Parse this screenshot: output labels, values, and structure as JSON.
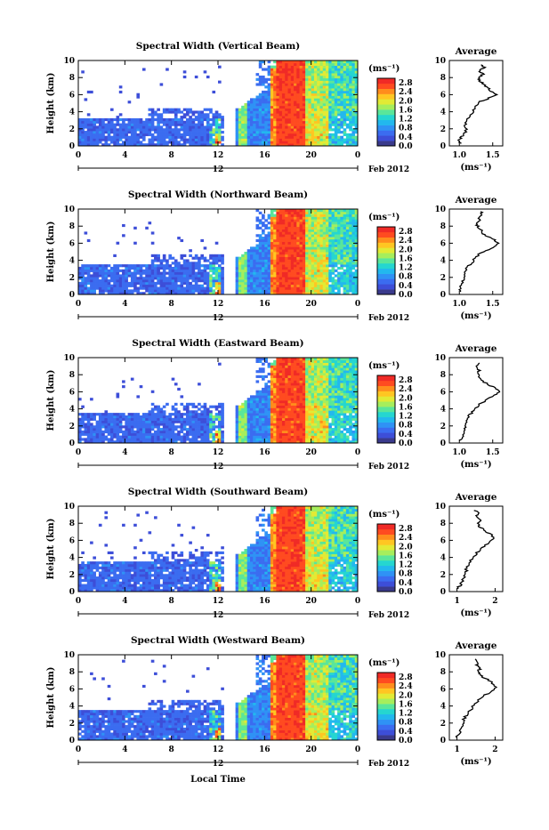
{
  "chart_data": {
    "type": "heatmap",
    "date_label": "Feb 2012",
    "xlabel": "Local Time",
    "ylabel": "Height (km)",
    "x_ticks": [
      "0",
      "4",
      "8",
      "12",
      "16",
      "20",
      "0"
    ],
    "secondary_tick": "12",
    "y_ticks": [
      "0",
      "2",
      "4",
      "6",
      "8",
      "10"
    ],
    "xlim": [
      0,
      24
    ],
    "ylim": [
      0,
      10
    ],
    "colorbar": {
      "unit": "(ms⁻¹)",
      "ticks": [
        "0.0",
        "0.4",
        "0.8",
        "1.2",
        "1.6",
        "2.0",
        "2.4",
        "2.8"
      ],
      "range": [
        0,
        3.0
      ],
      "colors": [
        "#3a3a8c",
        "#3d4ed8",
        "#3b6cf0",
        "#2f92f5",
        "#22b8ee",
        "#25d6d0",
        "#5ae69a",
        "#a6ee5c",
        "#e2ea35",
        "#ffc622",
        "#ff8d1c",
        "#ff4b20",
        "#f02a26"
      ]
    },
    "average_title": "Average",
    "average_xlabel": "(ms⁻¹)",
    "panels": [
      {
        "title": "Spectral Width (Vertical Beam)",
        "avg_ticks": [
          "1.0",
          "1.5"
        ],
        "avg_xlim": [
          0.85,
          1.65
        ],
        "avg_profile": [
          [
            1.02,
            0.3
          ],
          [
            1.0,
            0.8
          ],
          [
            1.05,
            1.2
          ],
          [
            1.1,
            1.8
          ],
          [
            1.08,
            2.4
          ],
          [
            1.12,
            3.0
          ],
          [
            1.18,
            3.6
          ],
          [
            1.2,
            4.2
          ],
          [
            1.25,
            4.8
          ],
          [
            1.32,
            5.2
          ],
          [
            1.45,
            5.6
          ],
          [
            1.55,
            6.0
          ],
          [
            1.48,
            6.4
          ],
          [
            1.42,
            6.8
          ],
          [
            1.38,
            7.2
          ],
          [
            1.3,
            7.6
          ],
          [
            1.28,
            8.0
          ],
          [
            1.35,
            8.4
          ],
          [
            1.3,
            8.8
          ],
          [
            1.38,
            9.2
          ],
          [
            1.32,
            9.6
          ]
        ]
      },
      {
        "title": "Spectral Width (Northward Beam)",
        "avg_ticks": [
          "1.0",
          "1.5"
        ],
        "avg_xlim": [
          0.85,
          1.65
        ],
        "avg_profile": [
          [
            1.0,
            0.3
          ],
          [
            1.02,
            0.8
          ],
          [
            1.05,
            1.4
          ],
          [
            1.08,
            2.0
          ],
          [
            1.1,
            2.6
          ],
          [
            1.12,
            3.2
          ],
          [
            1.2,
            3.8
          ],
          [
            1.25,
            4.4
          ],
          [
            1.35,
            5.0
          ],
          [
            1.5,
            5.5
          ],
          [
            1.6,
            6.0
          ],
          [
            1.52,
            6.4
          ],
          [
            1.42,
            6.8
          ],
          [
            1.35,
            7.2
          ],
          [
            1.3,
            7.8
          ],
          [
            1.25,
            8.2
          ],
          [
            1.3,
            8.6
          ],
          [
            1.28,
            9.0
          ],
          [
            1.35,
            9.4
          ],
          [
            1.3,
            9.8
          ]
        ]
      },
      {
        "title": "Spectral Width (Eastward Beam)",
        "avg_ticks": [
          "1.0",
          "1.5"
        ],
        "avg_xlim": [
          0.85,
          1.65
        ],
        "avg_profile": [
          [
            1.0,
            0.3
          ],
          [
            1.05,
            0.8
          ],
          [
            1.08,
            1.4
          ],
          [
            1.1,
            2.0
          ],
          [
            1.12,
            2.6
          ],
          [
            1.15,
            3.2
          ],
          [
            1.2,
            3.8
          ],
          [
            1.28,
            4.4
          ],
          [
            1.4,
            5.0
          ],
          [
            1.52,
            5.6
          ],
          [
            1.62,
            6.1
          ],
          [
            1.5,
            6.6
          ],
          [
            1.4,
            7.0
          ],
          [
            1.32,
            7.5
          ],
          [
            1.28,
            8.0
          ],
          [
            1.3,
            8.5
          ],
          [
            1.25,
            9.0
          ],
          [
            1.3,
            9.5
          ]
        ]
      },
      {
        "title": "Spectral Width (Southward Beam)",
        "avg_ticks": [
          "1",
          "2"
        ],
        "avg_xlim": [
          0.8,
          2.2
        ],
        "avg_profile": [
          [
            1.0,
            0.3
          ],
          [
            1.1,
            0.8
          ],
          [
            1.15,
            1.4
          ],
          [
            1.2,
            2.0
          ],
          [
            1.25,
            2.6
          ],
          [
            1.3,
            3.2
          ],
          [
            1.4,
            3.8
          ],
          [
            1.5,
            4.4
          ],
          [
            1.6,
            5.0
          ],
          [
            1.8,
            5.6
          ],
          [
            2.0,
            6.2
          ],
          [
            1.85,
            6.8
          ],
          [
            1.7,
            7.2
          ],
          [
            1.6,
            7.6
          ],
          [
            1.55,
            8.0
          ],
          [
            1.6,
            8.4
          ],
          [
            1.5,
            8.8
          ],
          [
            1.55,
            9.2
          ],
          [
            1.45,
            9.6
          ]
        ]
      },
      {
        "title": "Spectral Width (Westward Beam)",
        "avg_ticks": [
          "1",
          "2"
        ],
        "avg_xlim": [
          0.8,
          2.2
        ],
        "avg_profile": [
          [
            1.0,
            0.3
          ],
          [
            1.05,
            0.8
          ],
          [
            1.1,
            1.4
          ],
          [
            1.15,
            2.0
          ],
          [
            1.2,
            2.6
          ],
          [
            1.3,
            3.2
          ],
          [
            1.4,
            3.8
          ],
          [
            1.5,
            4.4
          ],
          [
            1.65,
            5.0
          ],
          [
            1.85,
            5.6
          ],
          [
            2.05,
            6.2
          ],
          [
            1.9,
            6.8
          ],
          [
            1.75,
            7.2
          ],
          [
            1.62,
            7.6
          ],
          [
            1.55,
            8.0
          ],
          [
            1.6,
            8.4
          ],
          [
            1.5,
            8.8
          ],
          [
            1.55,
            9.2
          ],
          [
            1.45,
            9.6
          ]
        ]
      }
    ]
  }
}
